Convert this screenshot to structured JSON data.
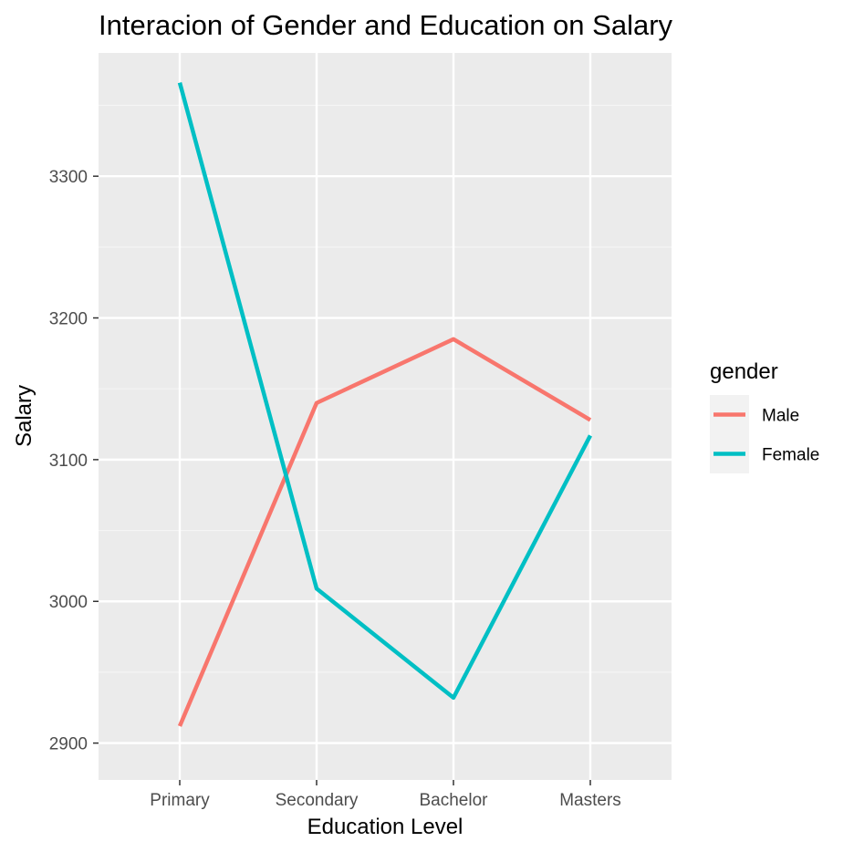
{
  "chart_data": {
    "type": "line",
    "title": "Interacion of Gender and Education on Salary",
    "xlabel": "Education Level",
    "ylabel": "Salary",
    "categories": [
      "Primary",
      "Secondary",
      "Bachelor",
      "Masters"
    ],
    "y_ticks": [
      2900,
      3000,
      3100,
      3200,
      3300
    ],
    "ylim": [
      2874,
      3387
    ],
    "grid": true,
    "legend": {
      "title": "gender",
      "position": "right"
    },
    "series": [
      {
        "name": "Male",
        "color": "#F8766D",
        "values": [
          2912,
          3140,
          3185,
          3128
        ]
      },
      {
        "name": "Female",
        "color": "#00BFC4",
        "values": [
          3366,
          3009,
          2932,
          3117
        ]
      }
    ],
    "colors": {
      "panel_background": "#EBEBEB",
      "grid_major": "#FFFFFF",
      "grid_minor": "#F5F5F5",
      "tick_text": "#4D4D4D"
    }
  }
}
